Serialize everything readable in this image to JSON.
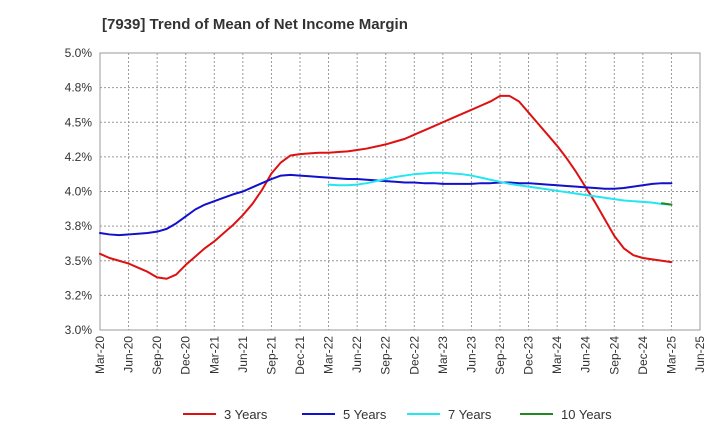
{
  "chart_data": {
    "type": "line",
    "title": "[7939]  Trend of Mean of Net Income Margin",
    "xlabel": "",
    "ylabel": "",
    "x_ticks": [
      "Mar-20",
      "Jun-20",
      "Sep-20",
      "Dec-20",
      "Mar-21",
      "Jun-21",
      "Sep-21",
      "Dec-21",
      "Mar-22",
      "Jun-22",
      "Sep-22",
      "Dec-22",
      "Mar-23",
      "Jun-23",
      "Sep-23",
      "Dec-23",
      "Mar-24",
      "Jun-24",
      "Sep-24",
      "Dec-24",
      "Mar-25",
      "Jun-25"
    ],
    "y_ticks": [
      "3.0%",
      "3.2%",
      "3.5%",
      "3.8%",
      "4.0%",
      "4.2%",
      "4.5%",
      "4.8%",
      "5.0%"
    ],
    "y_tick_values": [
      3.0,
      3.25,
      3.5,
      3.75,
      4.0,
      4.25,
      4.5,
      4.75,
      5.0
    ],
    "ylim": [
      3.0,
      5.0
    ],
    "grid": true,
    "legend_position": "bottom",
    "series": [
      {
        "name": "3 Years",
        "color": "#dd1111",
        "points": [
          [
            "Mar-20",
            3.55
          ],
          [
            "Apr-20",
            3.52
          ],
          [
            "May-20",
            3.5
          ],
          [
            "Jun-20",
            3.48
          ],
          [
            "Jul-20",
            3.45
          ],
          [
            "Aug-20",
            3.42
          ],
          [
            "Sep-20",
            3.38
          ],
          [
            "Oct-20",
            3.37
          ],
          [
            "Nov-20",
            3.4
          ],
          [
            "Dec-20",
            3.47
          ],
          [
            "Jan-21",
            3.53
          ],
          [
            "Feb-21",
            3.59
          ],
          [
            "Mar-21",
            3.64
          ],
          [
            "Apr-21",
            3.7
          ],
          [
            "May-21",
            3.76
          ],
          [
            "Jun-21",
            3.83
          ],
          [
            "Jul-21",
            3.91
          ],
          [
            "Aug-21",
            4.01
          ],
          [
            "Sep-21",
            4.13
          ],
          [
            "Oct-21",
            4.21
          ],
          [
            "Nov-21",
            4.26
          ],
          [
            "Dec-21",
            4.27
          ],
          [
            "Jan-22",
            4.275
          ],
          [
            "Feb-22",
            4.28
          ],
          [
            "Mar-22",
            4.28
          ],
          [
            "Apr-22",
            4.285
          ],
          [
            "May-22",
            4.29
          ],
          [
            "Jun-22",
            4.3
          ],
          [
            "Jul-22",
            4.31
          ],
          [
            "Aug-22",
            4.325
          ],
          [
            "Sep-22",
            4.34
          ],
          [
            "Oct-22",
            4.36
          ],
          [
            "Nov-22",
            4.38
          ],
          [
            "Dec-22",
            4.41
          ],
          [
            "Jan-23",
            4.44
          ],
          [
            "Feb-23",
            4.47
          ],
          [
            "Mar-23",
            4.5
          ],
          [
            "Apr-23",
            4.53
          ],
          [
            "May-23",
            4.56
          ],
          [
            "Jun-23",
            4.59
          ],
          [
            "Jul-23",
            4.62
          ],
          [
            "Aug-23",
            4.65
          ],
          [
            "Sep-23",
            4.69
          ],
          [
            "Oct-23",
            4.69
          ],
          [
            "Nov-23",
            4.65
          ],
          [
            "Dec-23",
            4.57
          ],
          [
            "Jan-24",
            4.49
          ],
          [
            "Feb-24",
            4.41
          ],
          [
            "Mar-24",
            4.33
          ],
          [
            "Apr-24",
            4.24
          ],
          [
            "May-24",
            4.14
          ],
          [
            "Jun-24",
            4.03
          ],
          [
            "Jul-24",
            3.92
          ],
          [
            "Aug-24",
            3.8
          ],
          [
            "Sep-24",
            3.68
          ],
          [
            "Oct-24",
            3.59
          ],
          [
            "Nov-24",
            3.54
          ],
          [
            "Dec-24",
            3.52
          ],
          [
            "Jan-25",
            3.51
          ],
          [
            "Feb-25",
            3.5
          ],
          [
            "Mar-25",
            3.49
          ]
        ]
      },
      {
        "name": "5 Years",
        "color": "#1111cc",
        "points": [
          [
            "Mar-20",
            3.7
          ],
          [
            "Apr-20",
            3.69
          ],
          [
            "May-20",
            3.685
          ],
          [
            "Jun-20",
            3.69
          ],
          [
            "Jul-20",
            3.695
          ],
          [
            "Aug-20",
            3.7
          ],
          [
            "Sep-20",
            3.71
          ],
          [
            "Oct-20",
            3.73
          ],
          [
            "Nov-20",
            3.77
          ],
          [
            "Dec-20",
            3.82
          ],
          [
            "Jan-21",
            3.87
          ],
          [
            "Feb-21",
            3.905
          ],
          [
            "Mar-21",
            3.93
          ],
          [
            "Apr-21",
            3.955
          ],
          [
            "May-21",
            3.98
          ],
          [
            "Jun-21",
            4.0
          ],
          [
            "Jul-21",
            4.03
          ],
          [
            "Aug-21",
            4.06
          ],
          [
            "Sep-21",
            4.09
          ],
          [
            "Oct-21",
            4.115
          ],
          [
            "Nov-21",
            4.12
          ],
          [
            "Dec-21",
            4.115
          ],
          [
            "Jan-22",
            4.11
          ],
          [
            "Feb-22",
            4.105
          ],
          [
            "Mar-22",
            4.1
          ],
          [
            "Apr-22",
            4.095
          ],
          [
            "May-22",
            4.09
          ],
          [
            "Jun-22",
            4.09
          ],
          [
            "Jul-22",
            4.085
          ],
          [
            "Aug-22",
            4.08
          ],
          [
            "Sep-22",
            4.075
          ],
          [
            "Oct-22",
            4.07
          ],
          [
            "Nov-22",
            4.065
          ],
          [
            "Dec-22",
            4.065
          ],
          [
            "Jan-23",
            4.06
          ],
          [
            "Feb-23",
            4.06
          ],
          [
            "Mar-23",
            4.055
          ],
          [
            "Apr-23",
            4.055
          ],
          [
            "May-23",
            4.055
          ],
          [
            "Jun-23",
            4.055
          ],
          [
            "Jul-23",
            4.06
          ],
          [
            "Aug-23",
            4.06
          ],
          [
            "Sep-23",
            4.065
          ],
          [
            "Oct-23",
            4.065
          ],
          [
            "Nov-23",
            4.06
          ],
          [
            "Dec-23",
            4.06
          ],
          [
            "Jan-24",
            4.055
          ],
          [
            "Feb-24",
            4.05
          ],
          [
            "Mar-24",
            4.045
          ],
          [
            "Apr-24",
            4.04
          ],
          [
            "May-24",
            4.035
          ],
          [
            "Jun-24",
            4.03
          ],
          [
            "Jul-24",
            4.025
          ],
          [
            "Aug-24",
            4.02
          ],
          [
            "Sep-24",
            4.02
          ],
          [
            "Oct-24",
            4.025
          ],
          [
            "Nov-24",
            4.035
          ],
          [
            "Dec-24",
            4.045
          ],
          [
            "Jan-25",
            4.055
          ],
          [
            "Feb-25",
            4.06
          ],
          [
            "Mar-25",
            4.06
          ]
        ]
      },
      {
        "name": "7 Years",
        "color": "#22e6f0",
        "points": [
          [
            "Mar-22",
            4.05
          ],
          [
            "Apr-22",
            4.045
          ],
          [
            "May-22",
            4.045
          ],
          [
            "Jun-22",
            4.05
          ],
          [
            "Jul-22",
            4.06
          ],
          [
            "Aug-22",
            4.075
          ],
          [
            "Sep-22",
            4.09
          ],
          [
            "Oct-22",
            4.105
          ],
          [
            "Nov-22",
            4.115
          ],
          [
            "Dec-22",
            4.125
          ],
          [
            "Jan-23",
            4.13
          ],
          [
            "Feb-23",
            4.135
          ],
          [
            "Mar-23",
            4.135
          ],
          [
            "Apr-23",
            4.13
          ],
          [
            "May-23",
            4.125
          ],
          [
            "Jun-23",
            4.115
          ],
          [
            "Jul-23",
            4.1
          ],
          [
            "Aug-23",
            4.085
          ],
          [
            "Sep-23",
            4.07
          ],
          [
            "Oct-23",
            4.055
          ],
          [
            "Nov-23",
            4.045
          ],
          [
            "Dec-23",
            4.035
          ],
          [
            "Jan-24",
            4.025
          ],
          [
            "Feb-24",
            4.015
          ],
          [
            "Mar-24",
            4.005
          ],
          [
            "Apr-24",
            3.995
          ],
          [
            "May-24",
            3.985
          ],
          [
            "Jun-24",
            3.975
          ],
          [
            "Jul-24",
            3.965
          ],
          [
            "Aug-24",
            3.955
          ],
          [
            "Sep-24",
            3.945
          ],
          [
            "Oct-24",
            3.935
          ],
          [
            "Nov-24",
            3.93
          ],
          [
            "Dec-24",
            3.925
          ],
          [
            "Jan-25",
            3.92
          ],
          [
            "Feb-25",
            3.91
          ],
          [
            "Mar-25",
            3.905
          ]
        ]
      },
      {
        "name": "10 Years",
        "color": "#228822",
        "points": [
          [
            "Feb-25",
            3.915
          ],
          [
            "Mar-25",
            3.905
          ]
        ]
      }
    ]
  }
}
